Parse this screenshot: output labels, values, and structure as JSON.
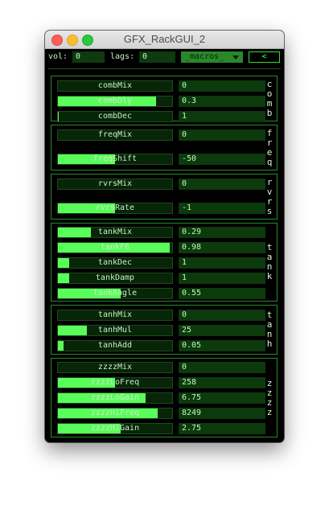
{
  "window": {
    "title": "GFX_RackGUI_2"
  },
  "top": {
    "vol_label": "vol:",
    "vol_value": "0",
    "lags_label": "lags:",
    "lags_value": "0",
    "macros_value": "_macros_",
    "back_label": "<"
  },
  "sections": [
    {
      "name": "comb",
      "params": [
        {
          "label": "combMix",
          "value": "0",
          "level": 0.0
        },
        {
          "label": "combDly",
          "value": "0.3",
          "level": 0.86
        },
        {
          "label": "combDec",
          "value": "1",
          "level": 0.01
        }
      ]
    },
    {
      "name": "freq",
      "params": [
        {
          "label": "freqMix",
          "value": "0",
          "level": 0.0
        },
        {
          "label": "freqShift",
          "value": "-50",
          "level": 0.5
        }
      ]
    },
    {
      "name": "rvrs",
      "params": [
        {
          "label": "rvrsMix",
          "value": "0",
          "level": 0.0
        },
        {
          "label": "rvrsRate",
          "value": "-1",
          "level": 0.5
        }
      ]
    },
    {
      "name": "tank",
      "params": [
        {
          "label": "tankMix",
          "value": "0.29",
          "level": 0.29
        },
        {
          "label": "tankFB",
          "value": "0.98",
          "level": 0.98
        },
        {
          "label": "tankDec",
          "value": "1",
          "level": 0.1
        },
        {
          "label": "tankDamp",
          "value": "1",
          "level": 0.1
        },
        {
          "label": "tankAngle",
          "value": "0.55",
          "level": 0.55
        }
      ]
    },
    {
      "name": "tanh",
      "params": [
        {
          "label": "tanhMix",
          "value": "0",
          "level": 0.0
        },
        {
          "label": "tanhMul",
          "value": "25",
          "level": 0.25
        },
        {
          "label": "tanhAdd",
          "value": "0.05",
          "level": 0.05
        }
      ]
    },
    {
      "name": "zzzz",
      "params": [
        {
          "label": "zzzzMix",
          "value": "0",
          "level": 0.0
        },
        {
          "label": "zzzzLoFreq",
          "value": "258",
          "level": 0.5
        },
        {
          "label": "zzzzLoGain",
          "value": "6.75",
          "level": 0.77
        },
        {
          "label": "zzzzHiFreq",
          "value": "8249",
          "level": 0.87
        },
        {
          "label": "zzzzHiGain",
          "value": "2.75",
          "level": 0.55
        }
      ]
    }
  ],
  "colors": {
    "accent": "#59fd59",
    "border": "#2a8a2a",
    "field": "#0c3a0c"
  }
}
